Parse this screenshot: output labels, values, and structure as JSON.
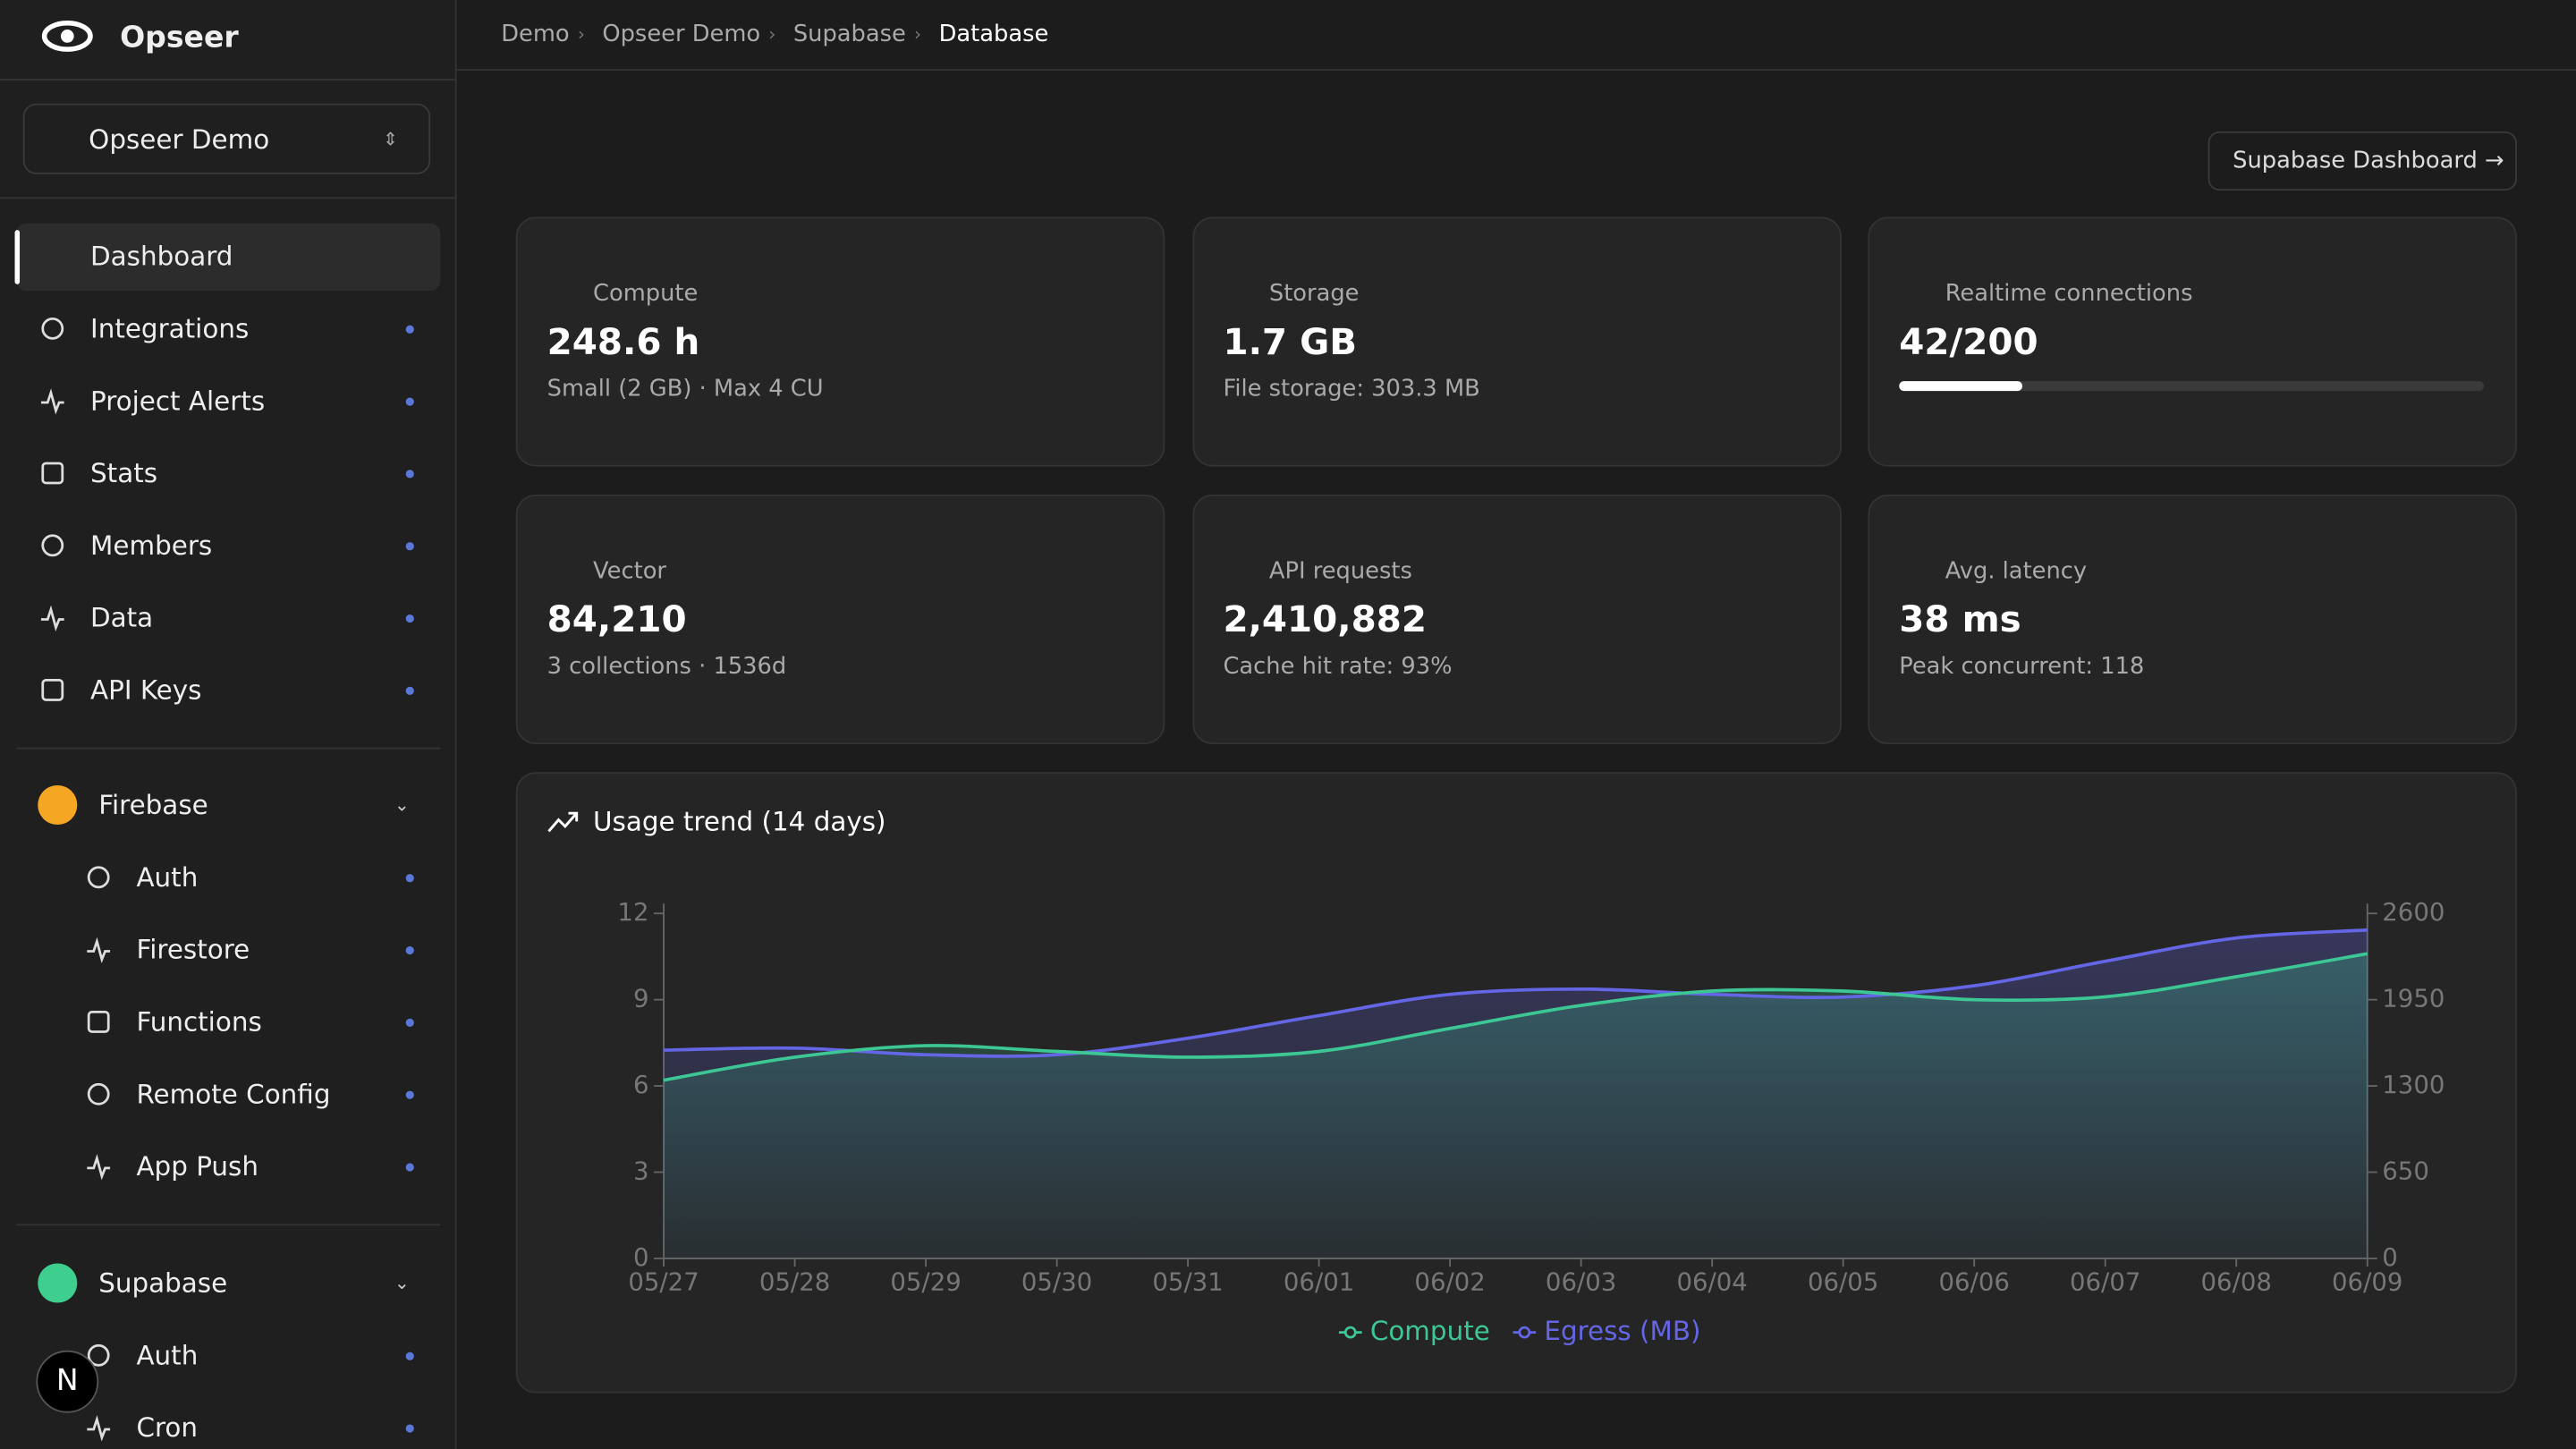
{
  "app": {
    "name": "Opseer"
  },
  "project_selector": "Opseer Demo",
  "nav": [
    "Dashboard",
    "Integrations",
    "Project Alerts",
    "Stats",
    "Members",
    "Data",
    "API Keys"
  ],
  "groups": [
    {
      "name": "Firebase",
      "items": [
        "Auth",
        "Firestore",
        "Functions",
        "Remote Config",
        "App Push"
      ]
    },
    {
      "name": "Supabase",
      "items": [
        "Auth",
        "Cron"
      ]
    }
  ],
  "avatar": "N",
  "breadcrumb": [
    "Demo",
    "Opseer Demo",
    "Supabase",
    "Database"
  ],
  "button": "Supabase Dashboard →",
  "cards": [
    {
      "label": "Compute",
      "value": "248.6 h",
      "sub": "Small (2 GB) · Max 4 CU"
    },
    {
      "label": "Storage",
      "value": "1.7 GB",
      "sub": "File storage: 303.3 MB"
    },
    {
      "label": "Realtime connections",
      "value": "42/200",
      "used": 42,
      "limit": 200
    },
    {
      "label": "Vector",
      "value": "84,210",
      "sub": "3 collections · 1536d"
    },
    {
      "label": "API requests",
      "value": "2,410,882",
      "sub": "Cache hit rate: 93%"
    },
    {
      "label": "Avg. latency",
      "value": "38 ms",
      "sub": "Peak concurrent: 118"
    }
  ],
  "chart_data": {
    "type": "line",
    "title": "Usage trend (14 days)",
    "categories": [
      "05/27",
      "05/28",
      "05/29",
      "05/30",
      "05/31",
      "06/01",
      "06/02",
      "06/03",
      "06/04",
      "06/05",
      "06/06",
      "06/07",
      "06/08",
      "06/09"
    ],
    "series": [
      {
        "name": "Compute",
        "color": "#3cc794",
        "values": [
          6.2,
          7.0,
          7.4,
          7.2,
          7.0,
          7.2,
          8.0,
          8.8,
          9.3,
          9.3,
          9.0,
          9.1,
          9.8,
          10.6
        ]
      },
      {
        "name": "Egress (MB)",
        "color": "#6466e6",
        "axis": "y2",
        "values": [
          1570,
          1585,
          1535,
          1535,
          1660,
          1830,
          1990,
          2030,
          1990,
          1970,
          2055,
          2240,
          2415,
          2475
        ]
      }
    ],
    "ylim": [
      0,
      12
    ],
    "yticks": [
      0,
      3,
      6,
      9,
      12
    ],
    "y2lim": [
      0,
      2600
    ],
    "y2ticks": [
      0,
      650,
      1300,
      1950,
      2600
    ]
  }
}
